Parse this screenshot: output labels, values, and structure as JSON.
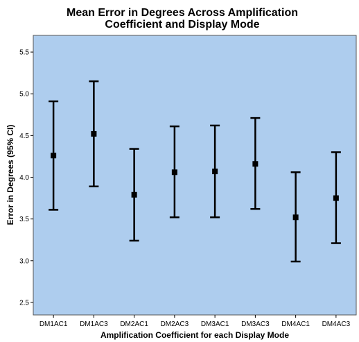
{
  "chart_data": {
    "type": "errorbar",
    "title_lines": [
      "Mean Error in Degrees Across Amplification",
      "Coefficient and Display Mode"
    ],
    "xlabel": "Amplification Coefficient for each Display Mode",
    "ylabel": "Error in Degrees (95% CI)",
    "ylim": [
      2.35,
      5.7
    ],
    "yticks": [
      2.5,
      3.0,
      3.5,
      4.0,
      4.5,
      5.0,
      5.5
    ],
    "ytick_labels": [
      "2.5",
      "3.0",
      "3.5",
      "4.0",
      "4.5",
      "5.0",
      "5.5"
    ],
    "categories": [
      "DM1AC1",
      "DM1AC3",
      "DM2AC1",
      "DM2AC3",
      "DM3AC1",
      "DM3AC3",
      "DM4AC1",
      "DM4AC3"
    ],
    "means": [
      4.26,
      4.52,
      3.79,
      4.06,
      4.07,
      4.16,
      3.52,
      3.75
    ],
    "lower": [
      3.61,
      3.89,
      3.24,
      3.52,
      3.52,
      3.62,
      2.99,
      3.21
    ],
    "upper": [
      4.91,
      5.15,
      4.34,
      4.61,
      4.62,
      4.71,
      4.06,
      4.3
    ],
    "plot_background": "#aecdee",
    "marker_color": "#000000",
    "grid": false
  }
}
